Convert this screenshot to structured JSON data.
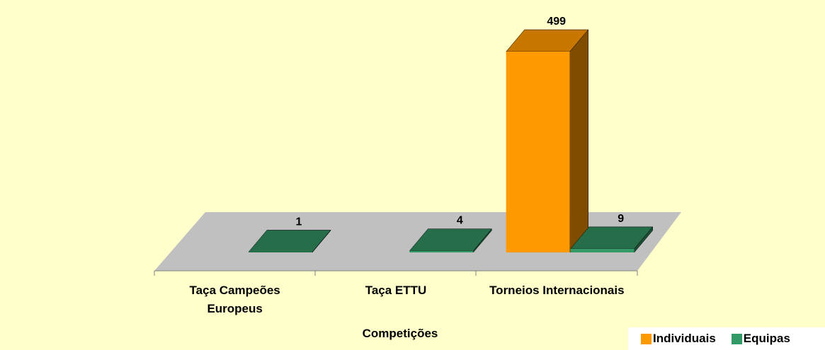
{
  "chart_data": {
    "type": "bar3d",
    "categories": [
      "Taça Campeões Europeus",
      "Taça ETTU",
      "Torneios Internacionais"
    ],
    "x_label": "Competições",
    "series": [
      {
        "name": "Individuais",
        "color": "#ff9900",
        "values": [
          null,
          null,
          499
        ]
      },
      {
        "name": "Equipas",
        "color": "#339966",
        "values": [
          1,
          4,
          9
        ]
      }
    ],
    "legend": "bottom-right"
  }
}
